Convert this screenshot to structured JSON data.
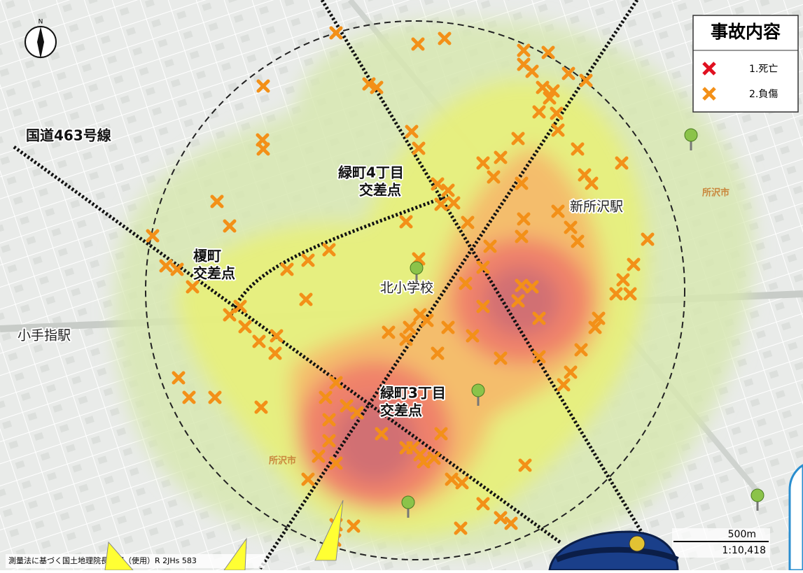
{
  "legend": {
    "title": "事故内容",
    "items": [
      "1.死亡",
      "2.負傷"
    ]
  },
  "labels": {
    "route": "国道463号線",
    "midori4": [
      "緑町4丁目",
      "交差点"
    ],
    "enoki": [
      "榎町",
      "交差点"
    ],
    "school": "北小学校",
    "shintokorozawa": "新所沢駅",
    "kotesashi": "小手指駅",
    "midori3": [
      "緑町3丁目",
      "交差点"
    ],
    "city_left": "所沢市",
    "city_right": "所沢市"
  },
  "scale": {
    "distance": "500m",
    "ratio": "1:10,418"
  },
  "credit": "測量法に基づく国土地理院長承認（使用）R 2JHs 583"
}
